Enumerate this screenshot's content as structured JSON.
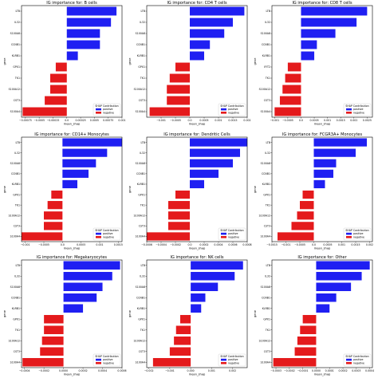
{
  "figure": {
    "colors": {
      "positive": "#1f1ff2",
      "negative": "#e41a1c"
    }
  },
  "chart_data": [
    {
      "type": "bar",
      "orientation": "horizontal",
      "title": "IG importance for: B cells",
      "xlabel": "mean_shap",
      "ylabel": "gene",
      "categories": [
        "LTB",
        "IL32",
        "S100A8",
        "CCNB1",
        "KLRB1",
        "GPX1",
        "TK1",
        "S100A12",
        "CST3",
        "S100A4"
      ],
      "values": [
        0.0009,
        0.0008,
        0.0006,
        0.0006,
        0.0002,
        -0.0002,
        -0.0003,
        -0.0003,
        -0.0004,
        -0.0008
      ],
      "xlim": [
        -0.00082,
        0.001
      ],
      "xticks": [
        -0.00075,
        -0.0005,
        -0.00025,
        0.0,
        0.00025,
        0.0005,
        0.00075,
        0.001
      ],
      "xtick_labels": [
        "−0.00075",
        "−0.0005",
        "−0.00025",
        "0.0",
        "0.00025",
        "0.0005",
        "0.00075",
        "0.001"
      ],
      "legend": {
        "title": "SHAP Contribution",
        "entries": [
          "positive",
          "negative"
        ],
        "placement": "lower-right"
      }
    },
    {
      "type": "bar",
      "orientation": "horizontal",
      "title": "IG importance for: CD4 T cells",
      "xlabel": "mean_shap",
      "ylabel": "gene",
      "categories": [
        "LTB",
        "IL32",
        "S100A8",
        "CCNB1",
        "KLRB1",
        "GPX1",
        "TK1",
        "S100A12",
        "CST3",
        "S100A4"
      ],
      "values": [
        0.0019,
        0.0015,
        0.0012,
        0.0007,
        0.0005,
        -0.0005,
        -0.0007,
        -0.0008,
        -0.0008,
        -0.0014
      ],
      "xlim": [
        -0.0015,
        0.002
      ],
      "xticks": [
        -0.001,
        -0.0005,
        0.0,
        0.0005,
        0.001,
        0.0015,
        0.002
      ],
      "xtick_labels": [
        "−0.001",
        "−0.0005",
        "0.0",
        "0.0005",
        "0.001",
        "0.0015",
        "0.002"
      ],
      "legend": {
        "title": "SHAP Contribution",
        "entries": [
          "positive",
          "negative"
        ],
        "placement": "lower-right"
      }
    },
    {
      "type": "bar",
      "orientation": "horizontal",
      "title": "IG importance for: CD8 T cells",
      "xlabel": "mean_shap",
      "ylabel": "gene",
      "categories": [
        "LTB",
        "IL32",
        "S100A8",
        "CCNB1",
        "KLRB1",
        "IFIT2",
        "TK1",
        "S100A12",
        "CST3",
        "S100A4"
      ],
      "values": [
        0.0025,
        0.0021,
        0.0013,
        0.0006,
        0.0005,
        -0.0005,
        -0.0006,
        -0.0007,
        -0.0008,
        -0.001
      ],
      "xlim": [
        -0.0011,
        0.0027
      ],
      "xticks": [
        -0.001,
        -0.0005,
        0.0,
        0.0005,
        0.001,
        0.0015,
        0.002,
        0.0025
      ],
      "xtick_labels": [
        "−0.001",
        "−0.0005",
        "0.0",
        "0.0005",
        "0.001",
        "0.0015",
        "0.002",
        "0.0025"
      ],
      "legend": {
        "title": "SHAP Contribution",
        "entries": [
          "positive",
          "negative"
        ],
        "placement": "lower-right"
      }
    },
    {
      "type": "bar",
      "orientation": "horizontal",
      "title": "IG importance for: CD14+ Monocytes",
      "xlabel": "mean_shap",
      "ylabel": "gene",
      "categories": [
        "LTB",
        "IL32",
        "S100A8",
        "CCNB1",
        "KLRB1",
        "GPX1",
        "TK1",
        "S100A12",
        "CST3",
        "S100A4"
      ],
      "values": [
        0.0016,
        0.0012,
        0.0009,
        0.0007,
        0.0004,
        -0.0003,
        -0.0004,
        -0.0005,
        -0.0005,
        -0.0011
      ],
      "xlim": [
        -0.0011,
        0.0016
      ],
      "xticks": [
        -0.001,
        -0.0005,
        0.0,
        0.0005,
        0.001,
        0.0015
      ],
      "xtick_labels": [
        "−0.001",
        "−0.0005",
        "0.0",
        "0.0005",
        "0.001",
        "0.0015"
      ],
      "legend": {
        "title": "SHAP Contribution",
        "entries": [
          "positive",
          "negative"
        ],
        "placement": "lower-right"
      }
    },
    {
      "type": "bar",
      "orientation": "horizontal",
      "title": "IG importance for: Dendritic Cells",
      "xlabel": "mean_shap",
      "ylabel": "gene",
      "categories": [
        "LTB",
        "IL32",
        "S100A8",
        "CCNB1",
        "KLRB1",
        "GPX1",
        "TK1",
        "S100A12",
        "CST3",
        "S100A4"
      ],
      "values": [
        0.0008,
        0.0007,
        0.0006,
        0.0004,
        0.0002,
        -0.0002,
        -0.0003,
        -0.0003,
        -0.0003,
        -0.0006
      ],
      "xlim": [
        -0.0006,
        0.0008
      ],
      "xticks": [
        -0.0006,
        -0.0004,
        -0.0002,
        0.0,
        0.0002,
        0.0004,
        0.0006,
        0.0008
      ],
      "xtick_labels": [
        "−0.0006",
        "−0.0004",
        "−0.0002",
        "0.0",
        "0.0002",
        "0.0004",
        "0.0006",
        "0.0008"
      ],
      "legend": {
        "title": "SHAP Contribution",
        "entries": [
          "positive",
          "negative"
        ],
        "placement": "lower-right"
      }
    },
    {
      "type": "bar",
      "orientation": "horizontal",
      "title": "IG importance for: FCGR3A+ Monocytes",
      "xlabel": "mean_shap",
      "ylabel": "gene",
      "categories": [
        "LTB",
        "IL32",
        "S100A8",
        "CCNB1",
        "KLRB1",
        "GPX1",
        "TK1",
        "S100A12",
        "CST3",
        "S100A4"
      ],
      "values": [
        0.0019,
        0.0015,
        0.0008,
        0.0007,
        0.0004,
        -0.0004,
        -0.0005,
        -0.0006,
        -0.0008,
        -0.0013
      ],
      "xlim": [
        -0.0015,
        0.0021
      ],
      "xticks": [
        -0.0015,
        -0.001,
        -0.0005,
        0.0,
        0.0005,
        0.001,
        0.0015,
        0.002
      ],
      "xtick_labels": [
        "−0.0015",
        "−0.001",
        "−0.0005",
        "0.0",
        "0.0005",
        "0.001",
        "0.0015",
        "0.002"
      ],
      "legend": {
        "title": "SHAP Contribution",
        "entries": [
          "positive",
          "negative"
        ],
        "placement": "lower-right"
      }
    },
    {
      "type": "bar",
      "orientation": "horizontal",
      "title": "IG importance for: Megakaryocytes",
      "xlabel": "mean_shap",
      "ylabel": "gene",
      "categories": [
        "LTB",
        "IL32",
        "S100A8",
        "CCNB1",
        "KLRB1",
        "GPX1",
        "TK1",
        "S100A12",
        "CST3",
        "S100A4"
      ],
      "values": [
        0.00058,
        0.0005,
        0.0004,
        0.00034,
        0.0002,
        -0.0002,
        -0.0002,
        -0.00022,
        -0.00024,
        -0.00042
      ],
      "xlim": [
        -0.00043,
        0.0006
      ],
      "xticks": [
        -0.0004,
        -0.0002,
        0.0,
        0.0002,
        0.0004,
        0.0006
      ],
      "xtick_labels": [
        "−0.0004",
        "−0.0002",
        "0.0000",
        "0.0002",
        "0.0004",
        "0.0006"
      ],
      "legend": {
        "title": "SHAP Contribution",
        "entries": [
          "positive",
          "negative"
        ],
        "placement": "lower-right"
      }
    },
    {
      "type": "bar",
      "orientation": "horizontal",
      "title": "IG importance for: NK cells",
      "xlabel": "mean_shap",
      "ylabel": "gene",
      "categories": [
        "LTB",
        "IL32",
        "S100A8",
        "CCNB1",
        "KLRB1",
        "GPX1",
        "TK1",
        "S100A12",
        "CST3",
        "S100A4"
      ],
      "values": [
        0.0025,
        0.0021,
        0.0013,
        0.0007,
        0.0005,
        -0.0005,
        -0.0007,
        -0.0008,
        -0.001,
        -0.0018
      ],
      "xlim": [
        -0.0021,
        0.0027
      ],
      "xticks": [
        -0.002,
        -0.001,
        0.0,
        0.001,
        0.002
      ],
      "xtick_labels": [
        "−0.002",
        "−0.001",
        "0.000",
        "0.001",
        "0.002"
      ],
      "legend": {
        "title": "SHAP Contribution",
        "entries": [
          "positive",
          "negative"
        ],
        "placement": "lower-right"
      }
    },
    {
      "type": "bar",
      "orientation": "horizontal",
      "title": "IG importance for: Other",
      "xlabel": "mean_shap",
      "ylabel": "gene",
      "categories": [
        "LTB",
        "IL32",
        "S100A8",
        "CCNB1",
        "KLRB1",
        "GPX1",
        "TK1",
        "S100A12",
        "CST3",
        "S100A4"
      ],
      "values": [
        0.0004,
        0.00034,
        0.00026,
        0.00015,
        0.0001,
        -0.0001,
        -0.00012,
        -0.00014,
        -0.00016,
        -0.00032
      ],
      "xlim": [
        -0.00033,
        0.00042
      ],
      "xticks": [
        -0.0003,
        -0.0002,
        -0.0001,
        0.0,
        0.0001,
        0.0002,
        0.0003,
        0.0004
      ],
      "xtick_labels": [
        "−0.0003",
        "−0.0002",
        "−0.0001",
        "0.0000",
        "0.0001",
        "0.0002",
        "0.0003",
        "0.0004"
      ],
      "legend": {
        "title": "SHAP Contribution",
        "entries": [
          "positive",
          "negative"
        ],
        "placement": "lower-right"
      }
    }
  ]
}
